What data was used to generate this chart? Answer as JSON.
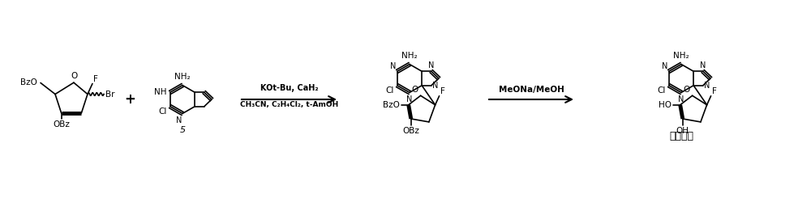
{
  "background": "#ffffff",
  "reagent1_line1": "KOt-Bu, CaH₂",
  "reagent1_line2": "CH₃CN, C₂H₄Cl₂, t-AmOH",
  "reagent2": "MeONa/MeOH",
  "product_name": "氯法拉滨",
  "compound_label": "5"
}
